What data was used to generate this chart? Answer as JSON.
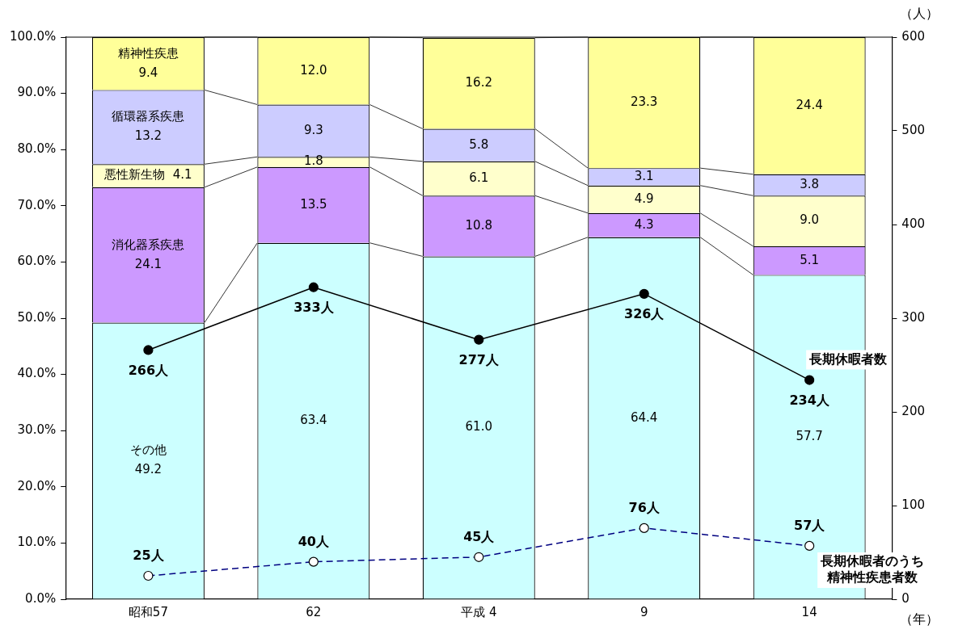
{
  "chart_data": {
    "type": "bar",
    "stacked": true,
    "categories": [
      "昭和57",
      "62",
      "平成 4",
      "9",
      "14"
    ],
    "xlabel": "（年）",
    "y2label": "（人）",
    "ylim": [
      0,
      100
    ],
    "yticks": [
      {
        "value": 0,
        "label": "0.0%"
      },
      {
        "value": 10,
        "label": "10.0%"
      },
      {
        "value": 20,
        "label": "20.0%"
      },
      {
        "value": 30,
        "label": "30.0%"
      },
      {
        "value": 40,
        "label": "40.0%"
      },
      {
        "value": 50,
        "label": "50.0%"
      },
      {
        "value": 60,
        "label": "60.0%"
      },
      {
        "value": 70,
        "label": "70.0%"
      },
      {
        "value": 80,
        "label": "80.0%"
      },
      {
        "value": 90,
        "label": "90.0%"
      },
      {
        "value": 100,
        "label": "100.0%"
      }
    ],
    "y2lim": [
      0,
      600
    ],
    "y2ticks": [
      0,
      100,
      200,
      300,
      400,
      500,
      600
    ],
    "grid": false,
    "legend": false,
    "marker": "circle",
    "series": [
      {
        "name": "その他",
        "color": "#ccffff",
        "values": [
          49.2,
          63.4,
          61.0,
          64.4,
          57.7
        ],
        "value_labels": [
          "49.2",
          "63.4",
          "61.0",
          "64.4",
          "57.7"
        ]
      },
      {
        "name": "消化器系疾患",
        "color": "#cc99ff",
        "values": [
          24.1,
          13.5,
          10.8,
          4.3,
          5.1
        ],
        "value_labels": [
          "24.1",
          "13.5",
          "10.8",
          "4.3",
          "5.1"
        ]
      },
      {
        "name": "悪性新生物",
        "color": "#ffffcc",
        "values": [
          4.1,
          1.8,
          6.1,
          4.9,
          9.0
        ],
        "value_labels": [
          "4.1",
          "1.8",
          "6.1",
          "4.9",
          "9.0"
        ]
      },
      {
        "name": "循環器系疾患",
        "color": "#ccccff",
        "values": [
          13.2,
          9.3,
          5.8,
          3.1,
          3.8
        ],
        "value_labels": [
          "13.2",
          "9.3",
          "5.8",
          "3.1",
          "3.8"
        ]
      },
      {
        "name": "精神性疾患",
        "color": "#ffff99",
        "values": [
          9.4,
          12.0,
          16.2,
          23.3,
          24.4
        ],
        "value_labels": [
          "9.4",
          "12.0",
          "16.2",
          "23.3",
          "24.4"
        ]
      },
      {
        "name": "長期休暇者数",
        "type": "line",
        "axis": "y2",
        "line_style": "solid",
        "color": "#000000",
        "values": [
          266,
          333,
          277,
          326,
          234
        ],
        "value_labels": [
          "266人",
          "333人",
          "277人",
          "326人",
          "234人"
        ]
      },
      {
        "name": "長期休暇者のうち精神性疾患者数",
        "type": "line",
        "axis": "y2",
        "line_style": "dashed",
        "color": "#000080",
        "values": [
          25,
          40,
          45,
          76,
          57
        ],
        "value_labels": [
          "25人",
          "40人",
          "45人",
          "76人",
          "57人"
        ]
      }
    ]
  }
}
